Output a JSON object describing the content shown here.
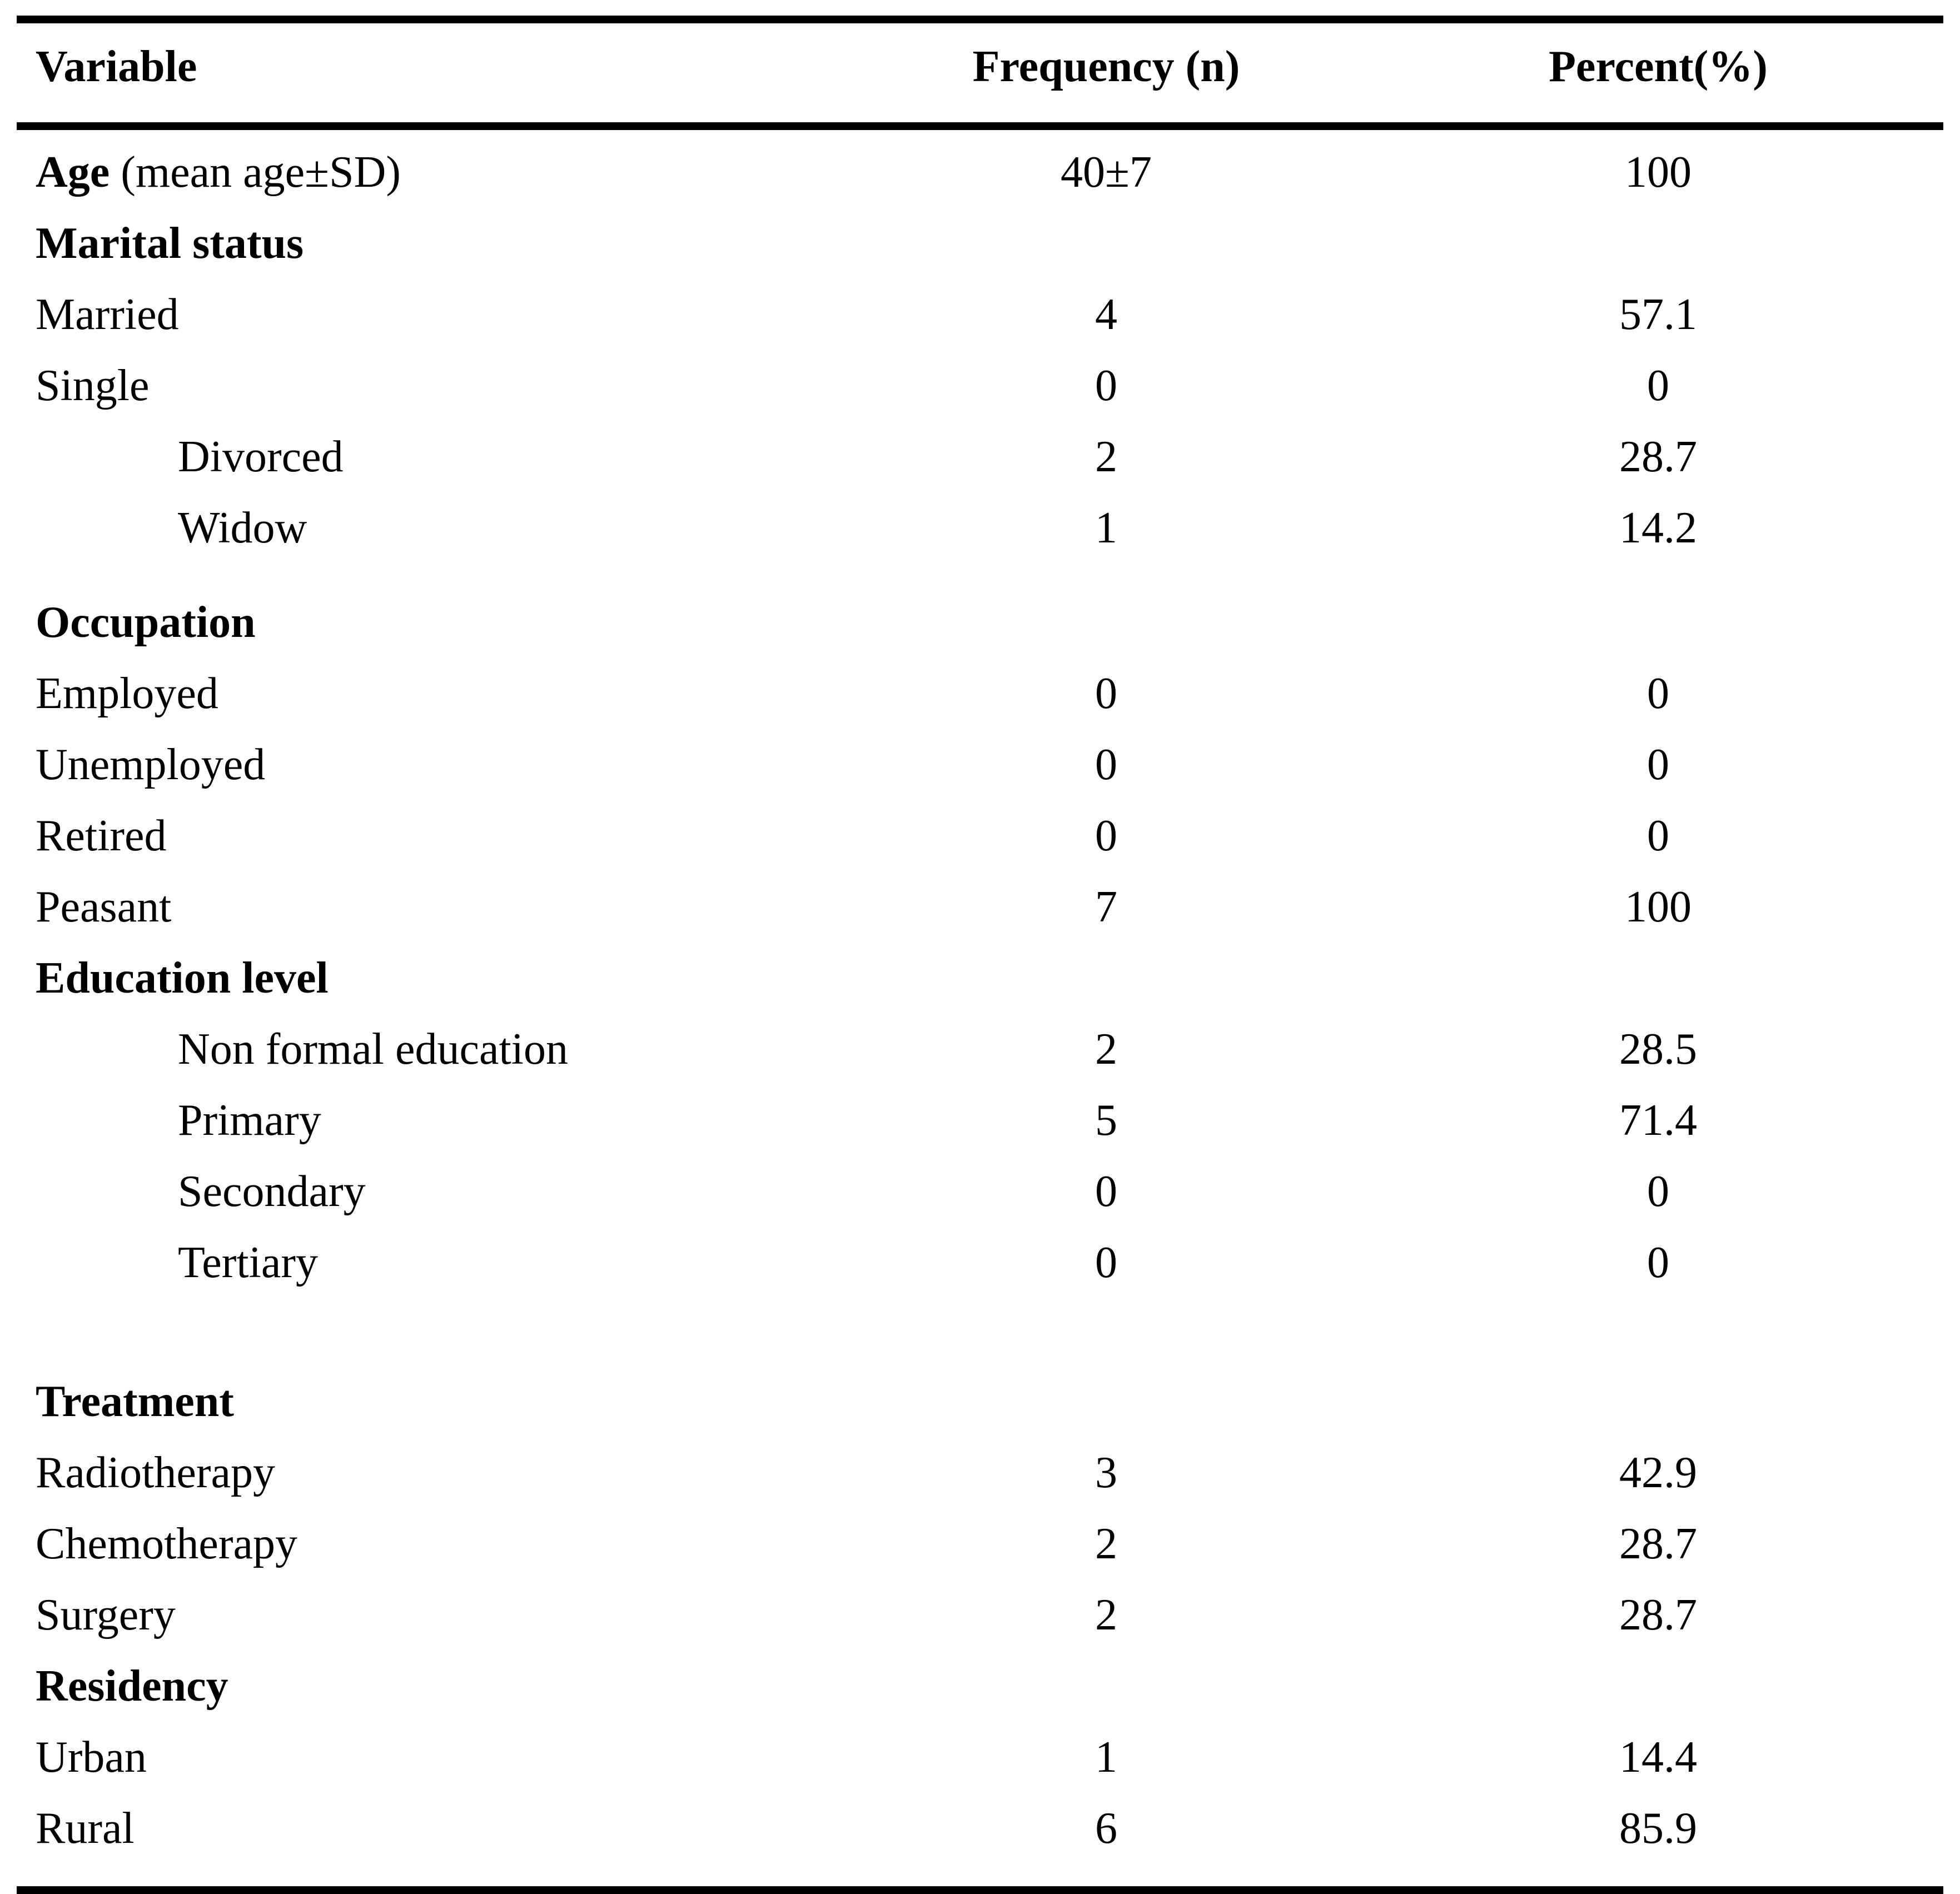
{
  "table": {
    "columns": [
      "Variable",
      "Frequency (n)",
      "Percent(%)"
    ],
    "rows": [
      {
        "label": "Age",
        "suffix": "(mean age±SD)",
        "bold": true,
        "indent": false,
        "gap": null,
        "freq": "40±7",
        "pct": "100"
      },
      {
        "label": "Marital status",
        "suffix": null,
        "bold": true,
        "indent": false,
        "gap": null,
        "freq": null,
        "pct": null
      },
      {
        "label": "Married",
        "suffix": null,
        "bold": false,
        "indent": false,
        "gap": null,
        "freq": "4",
        "pct": "57.1"
      },
      {
        "label": "Single",
        "suffix": null,
        "bold": false,
        "indent": false,
        "gap": null,
        "freq": "0",
        "pct": "0"
      },
      {
        "label": "Divorced",
        "suffix": null,
        "bold": false,
        "indent": true,
        "gap": null,
        "freq": "2",
        "pct": "28.7"
      },
      {
        "label": "Widow",
        "suffix": null,
        "bold": false,
        "indent": true,
        "gap": null,
        "freq": "1",
        "pct": "14.2"
      },
      {
        "label": "Occupation",
        "suffix": null,
        "bold": true,
        "indent": false,
        "gap": "small",
        "freq": null,
        "pct": null
      },
      {
        "label": "Employed",
        "suffix": null,
        "bold": false,
        "indent": false,
        "gap": null,
        "freq": "0",
        "pct": "0"
      },
      {
        "label": "Unemployed",
        "suffix": null,
        "bold": false,
        "indent": false,
        "gap": null,
        "freq": "0",
        "pct": "0"
      },
      {
        "label": "Retired",
        "suffix": null,
        "bold": false,
        "indent": false,
        "gap": null,
        "freq": "0",
        "pct": "0"
      },
      {
        "label": "Peasant",
        "suffix": null,
        "bold": false,
        "indent": false,
        "gap": null,
        "freq": "7",
        "pct": "100"
      },
      {
        "label": "Education level",
        "suffix": null,
        "bold": true,
        "indent": false,
        "gap": null,
        "freq": null,
        "pct": null
      },
      {
        "label": "Non formal education",
        "suffix": null,
        "bold": false,
        "indent": true,
        "gap": null,
        "freq": "2",
        "pct": "28.5"
      },
      {
        "label": "Primary",
        "suffix": null,
        "bold": false,
        "indent": true,
        "gap": null,
        "freq": "5",
        "pct": "71.4"
      },
      {
        "label": "Secondary",
        "suffix": null,
        "bold": false,
        "indent": true,
        "gap": null,
        "freq": "0",
        "pct": "0"
      },
      {
        "label": "Tertiary",
        "suffix": null,
        "bold": false,
        "indent": true,
        "gap": null,
        "freq": "0",
        "pct": "0"
      },
      {
        "label": "Treatment",
        "suffix": null,
        "bold": true,
        "indent": false,
        "gap": "large",
        "freq": null,
        "pct": null
      },
      {
        "label": "Radiotherapy",
        "suffix": null,
        "bold": false,
        "indent": false,
        "gap": null,
        "freq": "3",
        "pct": "42.9"
      },
      {
        "label": "Chemotherapy",
        "suffix": null,
        "bold": false,
        "indent": false,
        "gap": null,
        "freq": "2",
        "pct": "28.7"
      },
      {
        "label": "Surgery",
        "suffix": null,
        "bold": false,
        "indent": false,
        "gap": null,
        "freq": "2",
        "pct": "28.7"
      },
      {
        "label": "Residency",
        "suffix": null,
        "bold": true,
        "indent": false,
        "gap": null,
        "freq": null,
        "pct": null
      },
      {
        "label": "Urban",
        "suffix": null,
        "bold": false,
        "indent": false,
        "gap": null,
        "freq": "1",
        "pct": "14.4"
      },
      {
        "label": "Rural",
        "suffix": null,
        "bold": false,
        "indent": false,
        "gap": null,
        "freq": "6",
        "pct": "85.9"
      }
    ]
  }
}
